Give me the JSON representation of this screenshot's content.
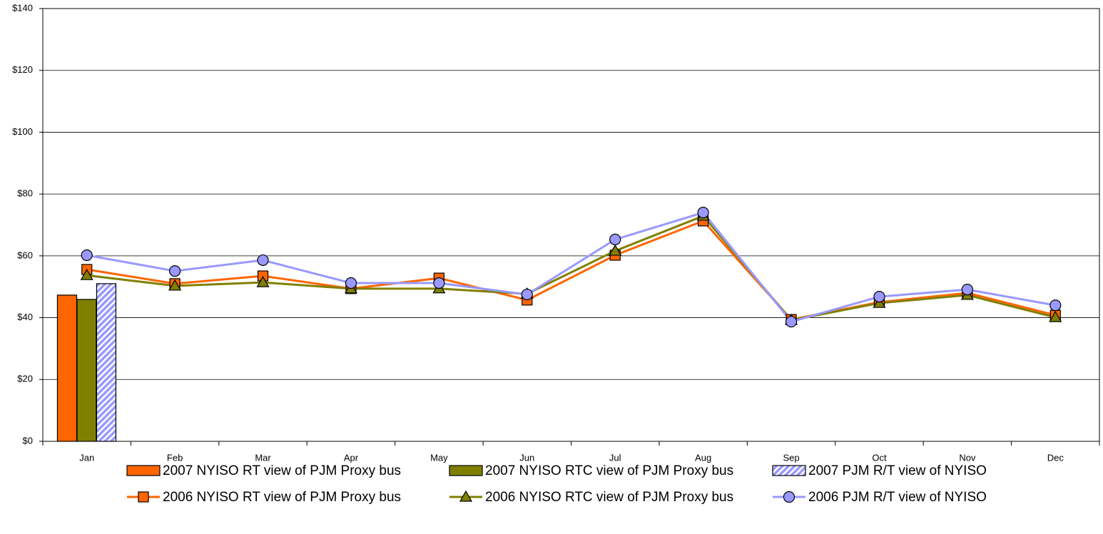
{
  "chart_data": {
    "type": "combo",
    "categories": [
      "Jan",
      "Feb",
      "Mar",
      "Apr",
      "May",
      "Jun",
      "Jul",
      "Aug",
      "Sep",
      "Oct",
      "Nov",
      "Dec"
    ],
    "ylim": [
      0,
      140
    ],
    "yticks": [
      {
        "value": 0,
        "label": "$0"
      },
      {
        "value": 20,
        "label": "$20"
      },
      {
        "value": 40,
        "label": "$40"
      },
      {
        "value": 60,
        "label": "$60"
      },
      {
        "value": 80,
        "label": "$80"
      },
      {
        "value": 100,
        "label": "$100"
      },
      {
        "value": 120,
        "label": "$120"
      },
      {
        "value": 140,
        "label": "$140"
      }
    ],
    "grid": true,
    "legend": "bottom",
    "series": [
      {
        "name": "2007 NYISO RT view of PJM Proxy bus",
        "type": "bar",
        "color": "#ff6600",
        "values": [
          47.3,
          null,
          null,
          null,
          null,
          null,
          null,
          null,
          null,
          null,
          null,
          null
        ]
      },
      {
        "name": "2007 NYISO RTC view of PJM Proxy bus",
        "type": "bar",
        "color": "#808000",
        "values": [
          45.9,
          null,
          null,
          null,
          null,
          null,
          null,
          null,
          null,
          null,
          null,
          null
        ]
      },
      {
        "name": "2007 PJM R/T view of NYISO",
        "type": "bar",
        "color": "#9999ff",
        "pattern": "hatch",
        "values": [
          51,
          null,
          null,
          null,
          null,
          null,
          null,
          null,
          null,
          null,
          null,
          null
        ]
      },
      {
        "name": "2006 NYISO RT view of PJM Proxy bus",
        "type": "line",
        "color": "#ff6600",
        "marker": "square",
        "values": [
          55.6,
          51,
          53.5,
          49.4,
          52.8,
          45.7,
          60.2,
          71.3,
          39.4,
          45,
          48,
          40.8
        ]
      },
      {
        "name": "2006 NYISO RTC view of PJM Proxy bus",
        "type": "line",
        "color": "#808000",
        "marker": "triangle",
        "values": [
          53.7,
          50.3,
          51.4,
          49.4,
          49.4,
          47.7,
          61.6,
          72.9,
          39.2,
          44.7,
          47.3,
          40.1
        ]
      },
      {
        "name": "2006 PJM R/T view of NYISO",
        "type": "line",
        "color": "#9999ff",
        "marker": "circle",
        "values": [
          60.2,
          55.1,
          58.6,
          51.2,
          51.2,
          47.5,
          65.3,
          74,
          38.7,
          46.8,
          49.1,
          44
        ]
      }
    ]
  }
}
